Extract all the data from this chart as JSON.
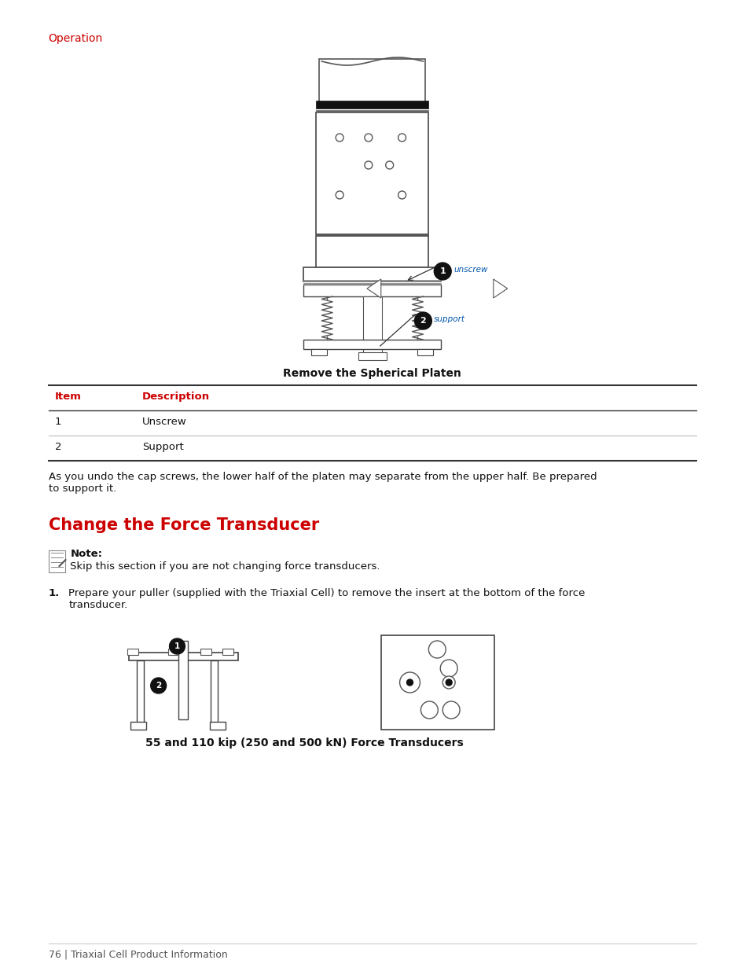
{
  "bg_color": "#ffffff",
  "red_color": "#cc0000",
  "dark_color": "#222222",
  "gray_color": "#888888",
  "light_gray": "#cccccc",
  "header_label": "Operation",
  "fig_caption1": "Remove the Spherical Platen",
  "table_col1_header": "Item",
  "table_col2_header": "Description",
  "table_rows": [
    [
      "1",
      "Unscrew"
    ],
    [
      "2",
      "Support"
    ]
  ],
  "para1": "As you undo the cap screws, the lower half of the platen may separate from the upper half. Be prepared\nto support it.",
  "section_title": "Change the Force Transducer",
  "note_label": "Note:",
  "note_text": "Skip this section if you are not changing force transducers.",
  "step1_num": "1.",
  "step1_text": "Prepare your puller (supplied with the Triaxial Cell) to remove the insert at the bottom of the force\ntransducer.",
  "fig_caption2": "55 and 110 kip (250 and 500 kN) Force Transducers",
  "footer_text": "76 | Triaxial Cell Product Information"
}
